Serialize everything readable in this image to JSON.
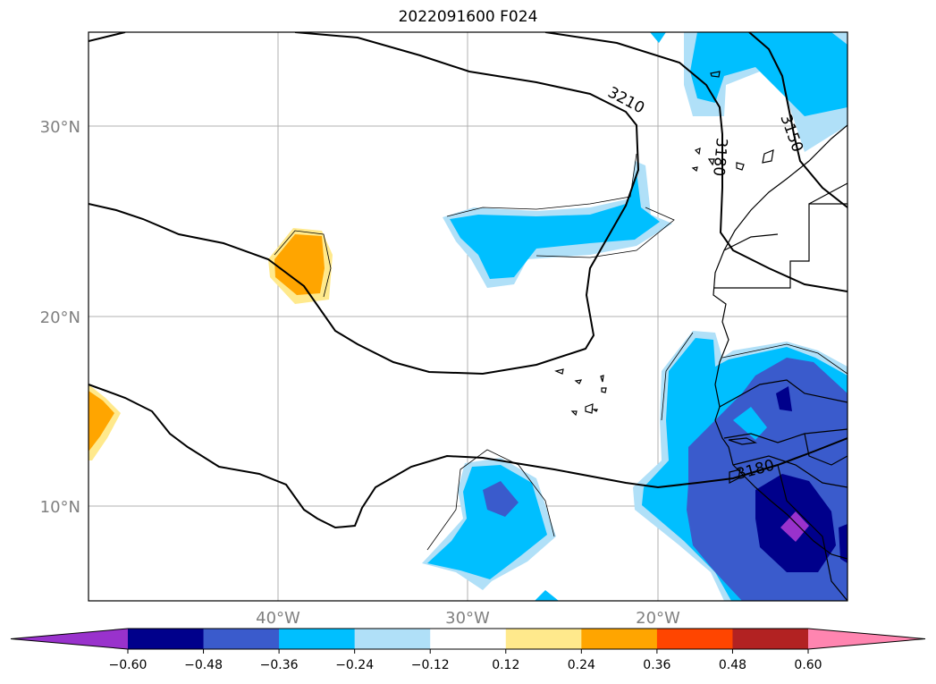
{
  "title": "2022091600 F024",
  "map": {
    "lat_labels": [
      "30°N",
      "20°N",
      "10°N"
    ],
    "lon_labels": [
      "40°W",
      "30°W",
      "20°W"
    ],
    "contour_labels": [
      "3210",
      "3180",
      "3150",
      "3180"
    ]
  },
  "colorbar": {
    "ticks": [
      "−0.60",
      "−0.48",
      "−0.36",
      "−0.24",
      "−0.12",
      "0.12",
      "0.24",
      "0.36",
      "0.48",
      "0.60"
    ],
    "colors": [
      "#9932cc",
      "#00008b",
      "#3a5bcc",
      "#00bfff",
      "#b0e0f8",
      "#ffffff",
      "#ffe98c",
      "#ffa500",
      "#ff4500",
      "#b22222",
      "#ff85b0"
    ]
  }
}
